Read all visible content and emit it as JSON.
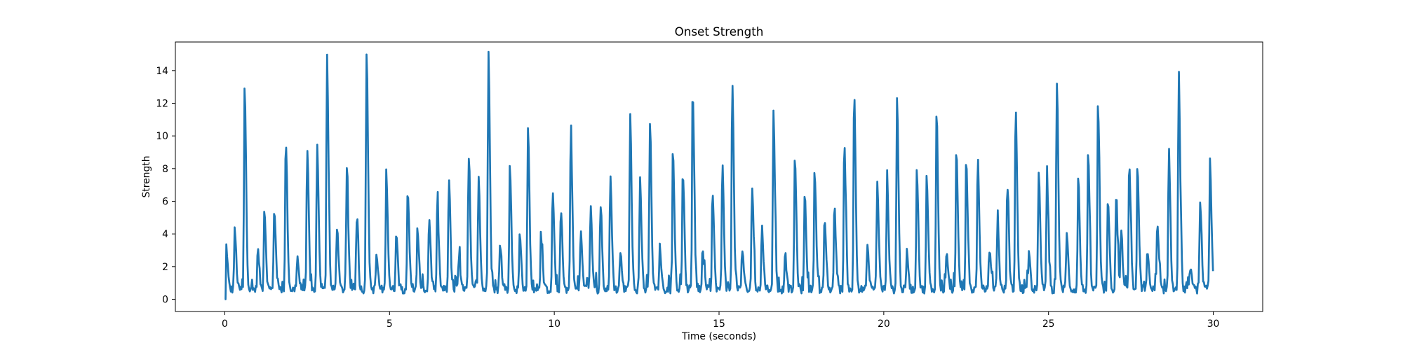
{
  "chart_data": {
    "type": "line",
    "title": "Onset Strength",
    "xlabel": "Time (seconds)",
    "ylabel": "Strength",
    "xlim": [
      -1.5,
      31.5
    ],
    "ylim": [
      -0.75,
      15.75
    ],
    "xticks": [
      0,
      5,
      10,
      15,
      20,
      25,
      30
    ],
    "xtick_labels": [
      "0",
      "5",
      "10",
      "15",
      "20",
      "25",
      "30"
    ],
    "yticks": [
      0,
      2,
      4,
      6,
      8,
      10,
      12,
      14
    ],
    "ytick_labels": [
      "0",
      "2",
      "4",
      "6",
      "8",
      "10",
      "12",
      "14"
    ],
    "grid": false,
    "legend": "none",
    "line_color": "#1f77b4",
    "baseline": 0.6,
    "series": [
      {
        "peaks": [
          [
            0.04,
            2.7
          ],
          [
            0.3,
            3.6
          ],
          [
            0.6,
            12.5
          ],
          [
            1.0,
            2.4
          ],
          [
            1.2,
            4.9
          ],
          [
            1.5,
            5.0
          ],
          [
            1.85,
            9.2
          ],
          [
            2.2,
            2.0
          ],
          [
            2.5,
            8.6
          ],
          [
            2.8,
            8.8
          ],
          [
            3.1,
            14.4
          ],
          [
            3.4,
            3.9
          ],
          [
            3.7,
            7.2
          ],
          [
            4.0,
            4.3
          ],
          [
            4.3,
            14.6
          ],
          [
            4.6,
            2.1
          ],
          [
            4.9,
            7.2
          ],
          [
            5.2,
            3.5
          ],
          [
            5.55,
            6.2
          ],
          [
            5.85,
            3.3
          ],
          [
            6.2,
            4.4
          ],
          [
            6.45,
            5.1
          ],
          [
            6.8,
            6.7
          ],
          [
            7.1,
            2.0
          ],
          [
            7.4,
            8.0
          ],
          [
            7.7,
            7.0
          ],
          [
            8.0,
            14.8
          ],
          [
            8.35,
            2.6
          ],
          [
            8.65,
            7.4
          ],
          [
            8.95,
            3.3
          ],
          [
            9.2,
            9.8
          ],
          [
            9.6,
            3.1
          ],
          [
            9.95,
            6.1
          ],
          [
            10.2,
            4.9
          ],
          [
            10.5,
            9.8
          ],
          [
            10.8,
            3.5
          ],
          [
            11.1,
            5.0
          ],
          [
            11.4,
            5.0
          ],
          [
            11.7,
            7.0
          ],
          [
            12.0,
            2.3
          ],
          [
            12.3,
            10.6
          ],
          [
            12.6,
            6.8
          ],
          [
            12.9,
            10.4
          ],
          [
            13.2,
            2.6
          ],
          [
            13.6,
            8.2
          ],
          [
            13.9,
            7.3
          ],
          [
            14.2,
            12.2
          ],
          [
            14.5,
            2.2
          ],
          [
            14.8,
            6.0
          ],
          [
            15.1,
            7.7
          ],
          [
            15.4,
            12.9
          ],
          [
            15.7,
            2.5
          ],
          [
            16.0,
            6.4
          ],
          [
            16.3,
            3.8
          ],
          [
            16.65,
            11.0
          ],
          [
            17.0,
            2.2
          ],
          [
            17.3,
            8.1
          ],
          [
            17.6,
            5.9
          ],
          [
            17.9,
            7.3
          ],
          [
            18.2,
            4.1
          ],
          [
            18.5,
            5.0
          ],
          [
            18.8,
            9.0
          ],
          [
            19.1,
            12.2
          ],
          [
            19.5,
            2.5
          ],
          [
            19.8,
            6.6
          ],
          [
            20.1,
            6.7
          ],
          [
            20.4,
            11.6
          ],
          [
            20.7,
            2.3
          ],
          [
            21.0,
            7.0
          ],
          [
            21.3,
            6.8
          ],
          [
            21.6,
            10.6
          ],
          [
            21.9,
            2.3
          ],
          [
            22.2,
            8.4
          ],
          [
            22.5,
            8.0
          ],
          [
            22.85,
            8.0
          ],
          [
            23.2,
            2.5
          ],
          [
            23.45,
            4.0
          ],
          [
            23.75,
            6.3
          ],
          [
            24.0,
            11.2
          ],
          [
            24.4,
            2.2
          ],
          [
            24.7,
            7.1
          ],
          [
            24.95,
            6.7
          ],
          [
            25.25,
            12.9
          ],
          [
            25.55,
            3.3
          ],
          [
            25.9,
            6.8
          ],
          [
            26.2,
            8.1
          ],
          [
            26.5,
            11.3
          ],
          [
            26.8,
            5.6
          ],
          [
            27.05,
            5.3
          ],
          [
            27.2,
            3.7
          ],
          [
            27.45,
            7.7
          ],
          [
            27.7,
            7.1
          ],
          [
            28.0,
            2.2
          ],
          [
            28.3,
            4.0
          ],
          [
            28.65,
            8.6
          ],
          [
            28.95,
            13.2
          ],
          [
            29.3,
            1.4
          ],
          [
            29.6,
            5.5
          ],
          [
            29.9,
            7.6
          ]
        ]
      }
    ]
  }
}
